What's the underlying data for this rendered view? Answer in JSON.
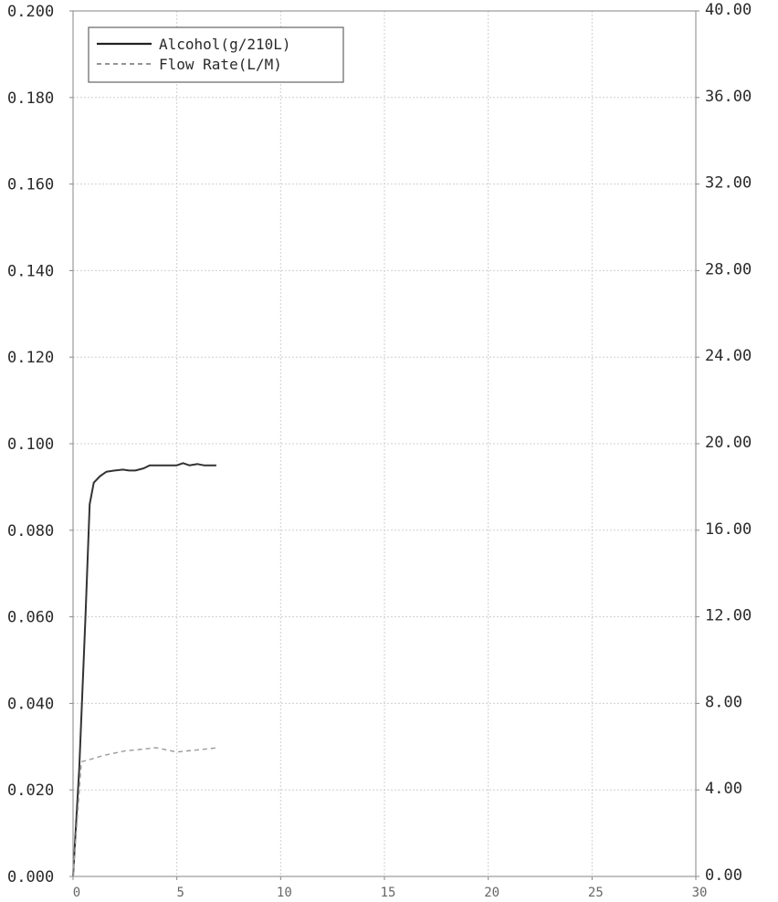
{
  "chart_data": {
    "type": "line",
    "title": "",
    "xlabel": "",
    "ylabel": "",
    "y2label": "",
    "xlim": [
      0,
      30
    ],
    "ylim": [
      0,
      0.2
    ],
    "y2lim": [
      0,
      40
    ],
    "grid": true,
    "legend_position": "top-left",
    "x_ticks": [
      "0",
      "5",
      "10",
      "15",
      "20",
      "25",
      "30"
    ],
    "y_ticks": [
      "0.000",
      "0.020",
      "0.040",
      "0.060",
      "0.080",
      "0.100",
      "0.120",
      "0.140",
      "0.160",
      "0.180",
      "0.200"
    ],
    "y2_ticks": [
      "0.00",
      "4.00",
      "8.00",
      "12.00",
      "16.00",
      "20.00",
      "24.00",
      "28.00",
      "32.00",
      "36.00",
      "40.00"
    ],
    "series": [
      {
        "name": "Alcohol(g/210L)",
        "axis": "left",
        "style": "solid",
        "color": "#333333",
        "points": [
          [
            0.0,
            0.0
          ],
          [
            0.3,
            0.025
          ],
          [
            0.6,
            0.06
          ],
          [
            0.8,
            0.086
          ],
          [
            1.0,
            0.091
          ],
          [
            1.3,
            0.0925
          ],
          [
            1.6,
            0.0935
          ],
          [
            2.0,
            0.0938
          ],
          [
            2.4,
            0.094
          ],
          [
            2.7,
            0.0938
          ],
          [
            3.0,
            0.0938
          ],
          [
            3.4,
            0.0943
          ],
          [
            3.7,
            0.095
          ],
          [
            4.0,
            0.095
          ],
          [
            4.5,
            0.095
          ],
          [
            5.0,
            0.095
          ],
          [
            5.3,
            0.0955
          ],
          [
            5.6,
            0.095
          ],
          [
            6.0,
            0.0953
          ],
          [
            6.3,
            0.095
          ],
          [
            6.6,
            0.095
          ],
          [
            6.9,
            0.095
          ]
        ]
      },
      {
        "name": "Flow Rate(L/M)",
        "axis": "right",
        "style": "dashed",
        "color": "#9a9a9a",
        "points": [
          [
            0.0,
            0.0
          ],
          [
            0.2,
            2.6
          ],
          [
            0.4,
            5.3
          ],
          [
            0.8,
            5.4
          ],
          [
            1.5,
            5.6
          ],
          [
            2.0,
            5.7
          ],
          [
            2.5,
            5.8
          ],
          [
            3.0,
            5.85
          ],
          [
            3.5,
            5.9
          ],
          [
            4.0,
            5.95
          ],
          [
            4.5,
            5.85
          ],
          [
            5.0,
            5.75
          ],
          [
            5.5,
            5.8
          ],
          [
            6.0,
            5.85
          ],
          [
            6.5,
            5.9
          ],
          [
            7.0,
            5.95
          ]
        ]
      }
    ]
  }
}
